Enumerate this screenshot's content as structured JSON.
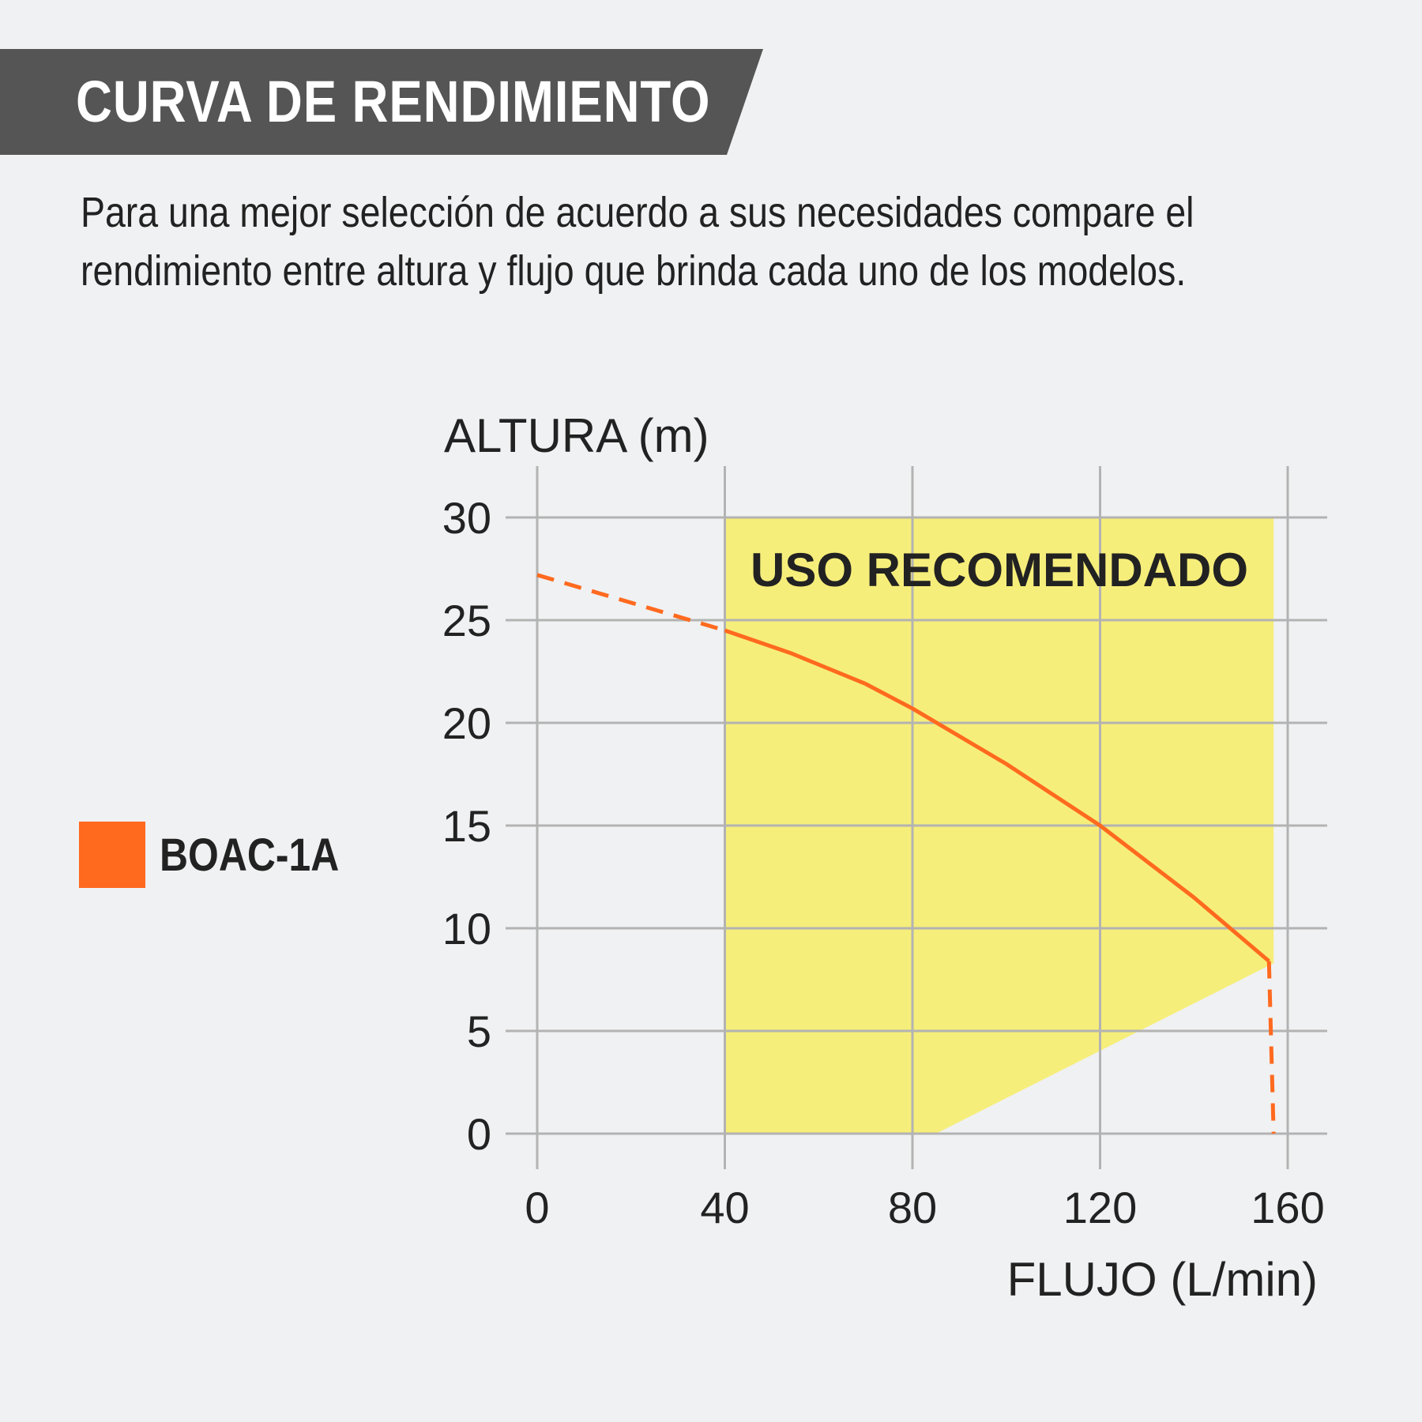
{
  "header": {
    "title": "CURVA DE RENDIMIENTO"
  },
  "description": {
    "line1": "Para una mejor selección de acuerdo a sus necesidades compare el",
    "line2": "rendimiento entre altura y flujo que brinda cada uno de los modelos."
  },
  "colors": {
    "banner": "#555555",
    "series": "#ff6a1f",
    "zone": "#f6ee7a",
    "grid": "#b3b3b3",
    "background": "#f0f1f2"
  },
  "chart_data": {
    "type": "line",
    "ylabel": "ALTURA (m)",
    "xlabel": "FLUJO (L/min)",
    "xlim": [
      0,
      160
    ],
    "ylim": [
      0,
      30
    ],
    "x_ticks": [
      0,
      40,
      80,
      120,
      160
    ],
    "y_ticks": [
      0,
      5,
      10,
      15,
      20,
      25,
      30
    ],
    "grid": true,
    "legend": {
      "position": "left",
      "entries": [
        "BOAC-1A"
      ]
    },
    "recommended_zone": {
      "label": "USO RECOMENDADO",
      "polygon": [
        [
          40,
          30
        ],
        [
          157,
          30
        ],
        [
          157,
          8.3
        ],
        [
          85,
          0
        ],
        [
          40,
          0
        ]
      ]
    },
    "series": [
      {
        "name": "BOAC-1A",
        "solid": [
          [
            40,
            24.5
          ],
          [
            54,
            23.4
          ],
          [
            70,
            21.9
          ],
          [
            80,
            20.7
          ],
          [
            100,
            18.0
          ],
          [
            120,
            15.0
          ],
          [
            140,
            11.5
          ],
          [
            156,
            8.4
          ]
        ],
        "dashed_start": [
          [
            0,
            27.2
          ],
          [
            40,
            24.5
          ]
        ],
        "dashed_end": [
          [
            156,
            8.4
          ],
          [
            157,
            0
          ]
        ]
      }
    ]
  }
}
